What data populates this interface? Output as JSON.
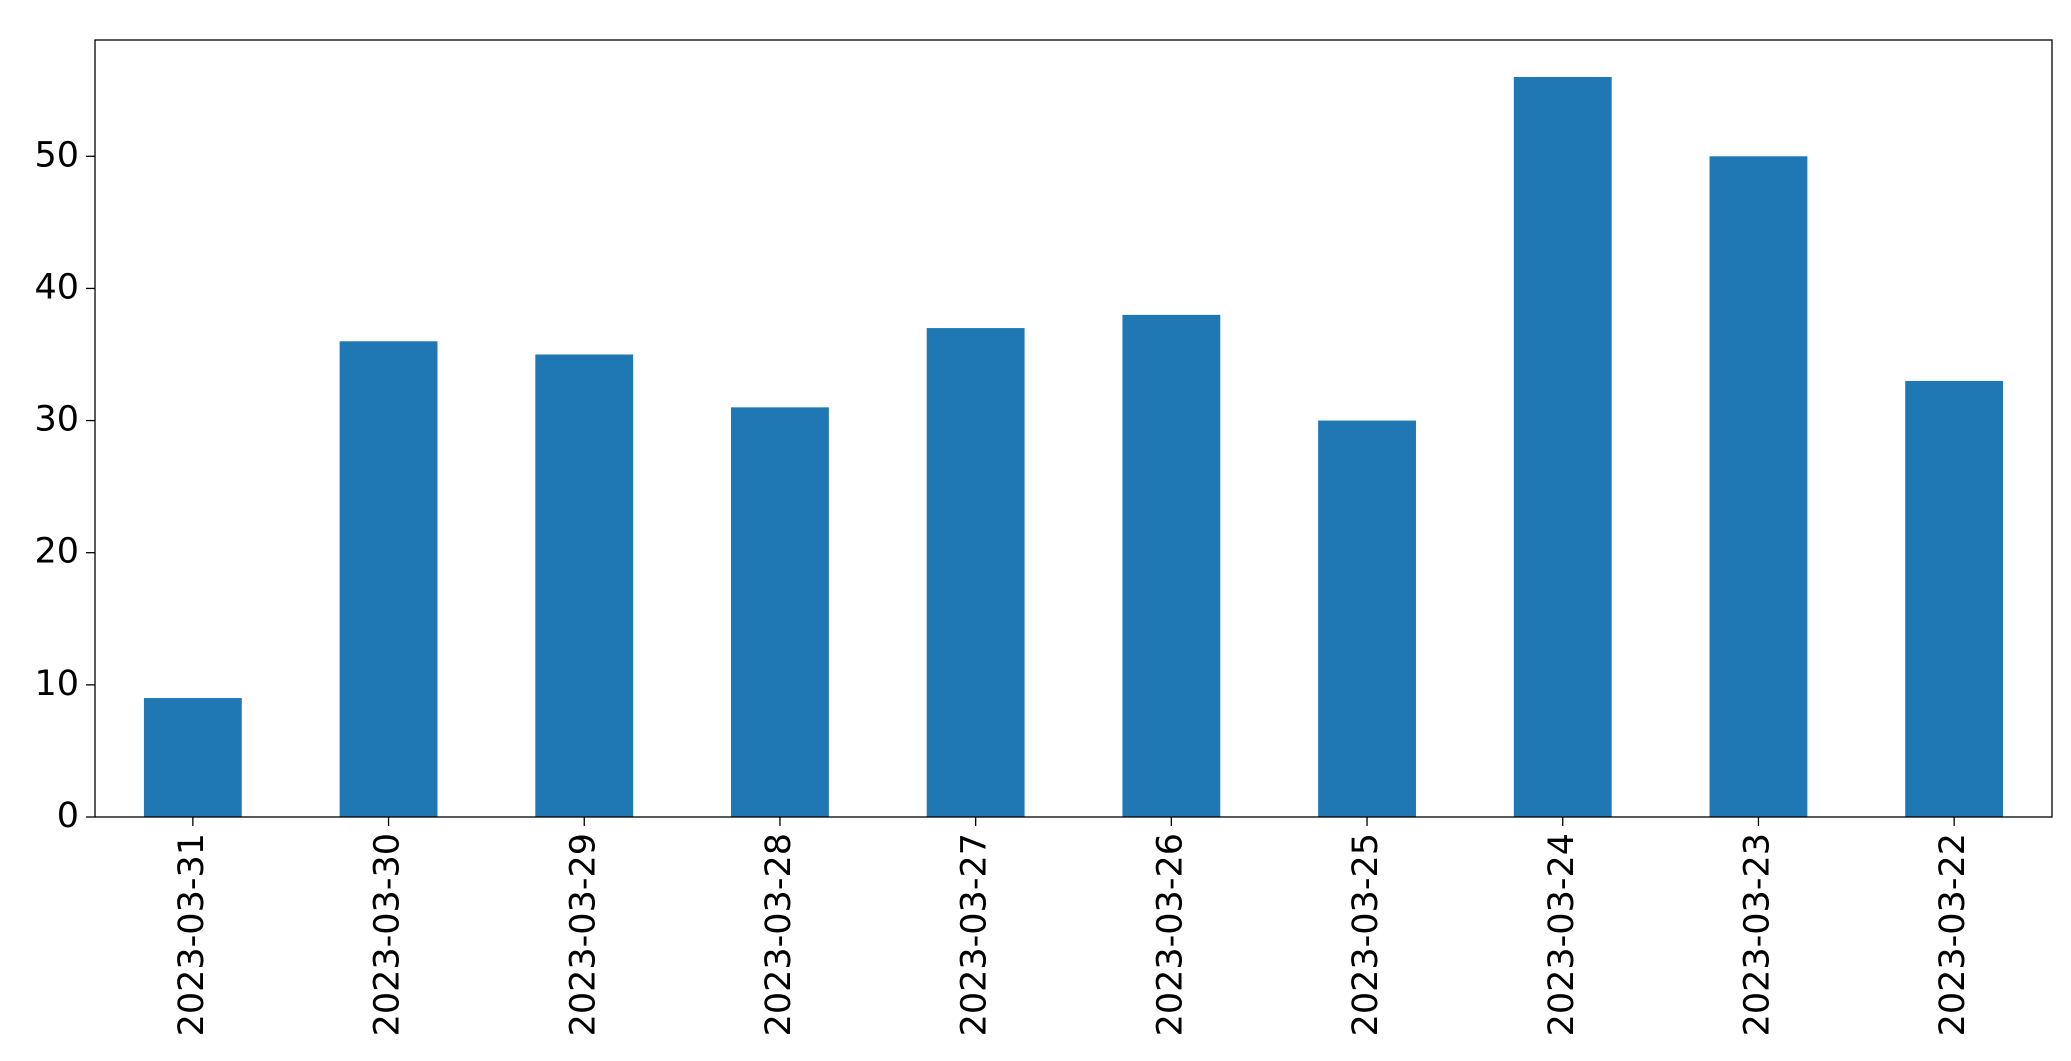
{
  "chart_data": {
    "type": "bar",
    "categories": [
      "2023-03-31",
      "2023-03-30",
      "2023-03-29",
      "2023-03-28",
      "2023-03-27",
      "2023-03-26",
      "2023-03-25",
      "2023-03-24",
      "2023-03-23",
      "2023-03-22"
    ],
    "values": [
      9,
      36,
      35,
      31,
      37,
      38,
      30,
      56,
      50,
      33
    ],
    "color": "#1f77b4",
    "ylim": [
      0,
      58.8
    ],
    "yticks": [
      0,
      10,
      20,
      30,
      40,
      50
    ],
    "grid": false
  }
}
